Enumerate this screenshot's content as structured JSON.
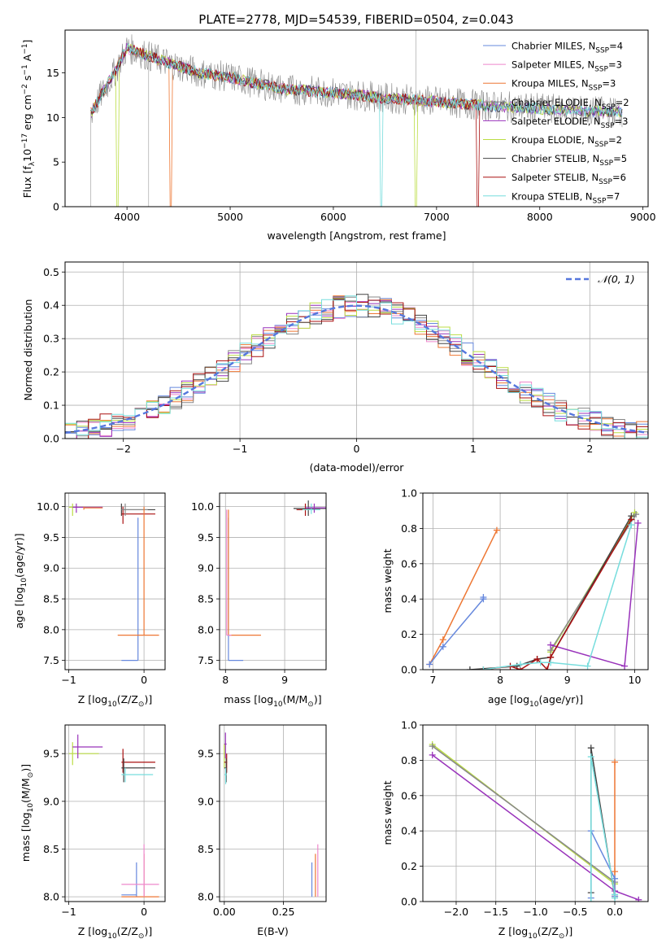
{
  "page": {
    "title": "PLATE=2778, MJD=54539, FIBERID=0504, z=0.043"
  },
  "chart_data": [
    {
      "id": "spectrum",
      "type": "line",
      "xlabel": "wavelength [Angstrom, rest frame]",
      "ylabel": "Flux [f_λ10^-17 erg cm^-2 s^-1 A^-1]",
      "xlim": [
        3400,
        9050
      ],
      "ylim": [
        0,
        19.8
      ],
      "xticks": [
        4000,
        5000,
        6000,
        7000,
        8000,
        9000
      ],
      "yticks": [
        0,
        5,
        10,
        15
      ],
      "legend_position": "upper right",
      "series": [
        {
          "name": "Chabrier MILES, N_SSP=4",
          "color": "#6688dd"
        },
        {
          "name": "Salpeter MILES, N_SSP=3",
          "color": "#ee88cc"
        },
        {
          "name": "Kroupa MILES, N_SSP=3",
          "color": "#ee7733"
        },
        {
          "name": "Chabrier ELODIE, N_SSP=2",
          "color": "#888888"
        },
        {
          "name": "Salpeter ELODIE, N_SSP=3",
          "color": "#9933bb"
        },
        {
          "name": "Kroupa ELODIE, N_SSP=2",
          "color": "#bbdd44"
        },
        {
          "name": "Chabrier STELIB, N_SSP=5",
          "color": "#444444"
        },
        {
          "name": "Salpeter STELIB, N_SSP=6",
          "color": "#aa1111"
        },
        {
          "name": "Kroupa STELIB, N_SSP=7",
          "color": "#77dddd"
        }
      ],
      "continuum": {
        "x": [
          3650,
          3900,
          4000,
          4300,
          4700,
          5000,
          5500,
          6000,
          6500,
          7000,
          7500,
          8000,
          8500,
          8800
        ],
        "y": [
          10.5,
          15.5,
          17.8,
          16.5,
          15.0,
          14.5,
          13.2,
          12.8,
          12.2,
          11.8,
          11.3,
          11.0,
          10.7,
          10.6
        ]
      }
    },
    {
      "id": "residuals",
      "type": "line",
      "xlabel": "(data-model)/error",
      "ylabel": "Normed distribution",
      "xlim": [
        -2.5,
        2.5
      ],
      "ylim": [
        0,
        0.53
      ],
      "xticks": [
        -2,
        -1,
        0,
        1,
        2
      ],
      "yticks": [
        0.0,
        0.1,
        0.2,
        0.3,
        0.4,
        0.5
      ],
      "grid": true,
      "legend": "N(0,1)",
      "legend_position": "upper right",
      "gaussian_color": "#5577dd"
    },
    {
      "id": "age_vs_Z",
      "type": "scatter",
      "xlabel": "Z [log10(Z/Z_sun)]",
      "ylabel": "age  [log10(age/yr)]",
      "xlim": [
        -1.05,
        0.28
      ],
      "ylim": [
        7.35,
        10.22
      ],
      "xticks": [
        -1,
        0
      ],
      "yticks": [
        7.5,
        8.0,
        8.5,
        9.0,
        9.5,
        10.0
      ],
      "grid": true
    },
    {
      "id": "age_vs_mass",
      "type": "scatter",
      "xlabel": "mass [log10(M/M_sun)]",
      "ylabel": "",
      "xlim": [
        7.9,
        9.7
      ],
      "ylim": [
        7.35,
        10.22
      ],
      "xticks": [
        8,
        9
      ],
      "yticks": [
        7.5,
        8.0,
        8.5,
        9.0,
        9.5,
        10.0
      ],
      "grid": true
    },
    {
      "id": "weight_vs_age",
      "type": "line",
      "xlabel": "age  [log10(age/yr)]",
      "ylabel": "mass weight",
      "xlim": [
        6.85,
        10.2
      ],
      "ylim": [
        0,
        1.0
      ],
      "xticks": [
        7,
        8,
        9,
        10
      ],
      "yticks": [
        0.0,
        0.2,
        0.4,
        0.6,
        0.8,
        1.0
      ],
      "grid": true,
      "series": [
        {
          "name": "Kroupa MILES",
          "color": "#ee7733",
          "x": [
            6.95,
            7.15,
            7.95
          ],
          "y": [
            0.03,
            0.17,
            0.79
          ]
        },
        {
          "name": "Chabrier MILES",
          "color": "#6688dd",
          "x": [
            6.95,
            7.15,
            7.75,
            7.75
          ],
          "y": [
            0.03,
            0.13,
            0.4,
            0.41
          ]
        },
        {
          "name": "Kroupa ELODIE",
          "color": "#bbdd44",
          "x": [
            8.75,
            10.0
          ],
          "y": [
            0.1,
            0.89
          ]
        },
        {
          "name": "Chabrier ELODIE",
          "color": "#888888",
          "x": [
            8.75,
            10.02
          ],
          "y": [
            0.11,
            0.88
          ]
        },
        {
          "name": "Salpeter ELODIE",
          "color": "#9933bb",
          "x": [
            8.75,
            9.85,
            10.05
          ],
          "y": [
            0.14,
            0.02,
            0.83
          ]
        },
        {
          "name": "Chabrier STELIB",
          "color": "#444444",
          "x": [
            7.55,
            8.25,
            8.55,
            8.75,
            9.95
          ],
          "y": [
            0.0,
            0.02,
            0.06,
            0.07,
            0.87
          ]
        },
        {
          "name": "Salpeter STELIB",
          "color": "#aa1111",
          "x": [
            7.75,
            8.15,
            8.3,
            8.55,
            8.7,
            8.75,
            9.95
          ],
          "y": [
            0.0,
            0.02,
            0.0,
            0.06,
            0.0,
            0.07,
            0.85
          ]
        },
        {
          "name": "Kroupa STELIB",
          "color": "#77dddd",
          "x": [
            7.75,
            8.3,
            8.6,
            8.75,
            9.3,
            9.95
          ],
          "y": [
            0.0,
            0.03,
            0.04,
            0.04,
            0.02,
            0.82
          ]
        }
      ]
    },
    {
      "id": "mass_vs_Z",
      "type": "scatter",
      "xlabel": "Z [log10(Z/Z_sun)]",
      "ylabel": "mass [log10(M/M_sun)]",
      "xlim": [
        -1.05,
        0.28
      ],
      "ylim": [
        7.95,
        9.8
      ],
      "xticks": [
        -1,
        0
      ],
      "yticks": [
        8.0,
        8.5,
        9.0,
        9.5
      ],
      "grid": true
    },
    {
      "id": "mass_vs_ebv",
      "type": "scatter",
      "xlabel": "E(B-V)",
      "ylabel": "",
      "xlim": [
        -0.02,
        0.43
      ],
      "ylim": [
        7.95,
        9.8
      ],
      "xticks": [
        0.0,
        0.25
      ],
      "xticklabels": [
        "0.00",
        "0.25"
      ],
      "yticks": [
        8.0,
        8.5,
        9.0,
        9.5
      ],
      "grid": true
    },
    {
      "id": "weight_vs_Z",
      "type": "line",
      "xlabel": "Z [log10(Z/Z_sun)]",
      "ylabel": "mass weight",
      "xlim": [
        -2.42,
        0.42
      ],
      "ylim": [
        0,
        1.0
      ],
      "xticks": [
        -2.0,
        -1.5,
        -1.0,
        -0.5,
        0.0
      ],
      "xticklabels": [
        "−2.0",
        "−1.5",
        "−1.0",
        "−0.5",
        "0.0"
      ],
      "yticks": [
        0.0,
        0.2,
        0.4,
        0.6,
        0.8,
        1.0
      ],
      "grid": true,
      "series": [
        {
          "name": "Kroupa ELODIE",
          "color": "#bbdd44",
          "x": [
            -2.3,
            0.0
          ],
          "y": [
            0.89,
            0.1
          ]
        },
        {
          "name": "Chabrier ELODIE",
          "color": "#888888",
          "x": [
            -2.3,
            0.0
          ],
          "y": [
            0.88,
            0.11
          ]
        },
        {
          "name": "Salpeter ELODIE",
          "color": "#9933bb",
          "x": [
            -2.3,
            0.0,
            0.3
          ],
          "y": [
            0.83,
            0.06,
            0.01
          ]
        },
        {
          "name": "Chabrier STELIB",
          "color": "#444444",
          "x": [
            -0.3,
            -0.3,
            0.0
          ],
          "y": [
            0.05,
            0.87,
            0.03
          ]
        },
        {
          "name": "Kroupa MILES",
          "color": "#ee7733",
          "x": [
            0.0,
            0.0,
            0.0
          ],
          "y": [
            0.03,
            0.79,
            0.17
          ]
        },
        {
          "name": "Chabrier MILES",
          "color": "#6688dd",
          "x": [
            -0.3,
            -0.3,
            0.0,
            0.0
          ],
          "y": [
            0.02,
            0.4,
            0.13,
            0.03
          ]
        },
        {
          "name": "Kroupa STELIB",
          "color": "#77dddd",
          "x": [
            -0.3,
            -0.3,
            0.0,
            0.0
          ],
          "y": [
            0.0,
            0.82,
            0.04,
            0.02
          ]
        }
      ]
    }
  ]
}
